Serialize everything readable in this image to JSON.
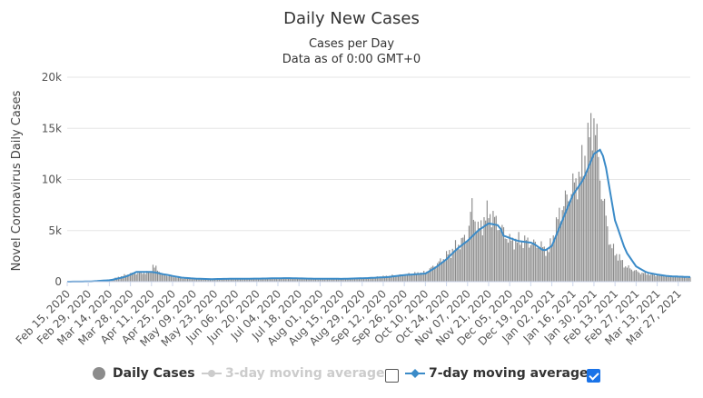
{
  "chart_data": {
    "type": "bar",
    "title": "Daily New Cases",
    "subtitle_line1": "Cases per Day",
    "subtitle_line2": "Data as of 0:00 GMT+0",
    "ylabel": "Novel Coronavirus Daily Cases",
    "ylim": [
      0,
      20000
    ],
    "yticks": [
      "0",
      "5k",
      "10k",
      "15k",
      "20k"
    ],
    "x_start": "2020-02-15",
    "x_end": "2021-04-04",
    "xtick_labels": [
      "Feb 15, 2020",
      "Feb 29, 2020",
      "Mar 14, 2020",
      "Mar 28, 2020",
      "Apr 11, 2020",
      "Apr 25, 2020",
      "May 09, 2020",
      "May 23, 2020",
      "Jun 06, 2020",
      "Jun 20, 2020",
      "Jul 04, 2020",
      "Jul 18, 2020",
      "Aug 01, 2020",
      "Aug 15, 2020",
      "Aug 29, 2020",
      "Sep 12, 2020",
      "Sep 26, 2020",
      "Oct 10, 2020",
      "Oct 24, 2020",
      "Nov 07, 2020",
      "Nov 21, 2020",
      "Dec 05, 2020",
      "Dec 19, 2020",
      "Jan 02, 2021",
      "Jan 16, 2021",
      "Jan 30, 2021",
      "Feb 13, 2021",
      "Feb 27, 2021",
      "Mar 13, 2021",
      "Mar 27, 2021"
    ],
    "series": [
      {
        "name": "Daily Cases",
        "color": "#8c8c8c",
        "visible": true,
        "anchors": [
          [
            "2020-02-15",
            0
          ],
          [
            "2020-03-01",
            20
          ],
          [
            "2020-03-15",
            200
          ],
          [
            "2020-03-28",
            800
          ],
          [
            "2020-04-10",
            900
          ],
          [
            "2020-04-12",
            1600
          ],
          [
            "2020-04-18",
            700
          ],
          [
            "2020-04-25",
            500
          ],
          [
            "2020-05-05",
            300
          ],
          [
            "2020-05-20",
            250
          ],
          [
            "2020-06-10",
            300
          ],
          [
            "2020-07-01",
            300
          ],
          [
            "2020-07-15",
            350
          ],
          [
            "2020-08-01",
            250
          ],
          [
            "2020-08-20",
            300
          ],
          [
            "2020-09-05",
            400
          ],
          [
            "2020-09-26",
            700
          ],
          [
            "2020-10-10",
            900
          ],
          [
            "2020-10-20",
            2000
          ],
          [
            "2020-10-31",
            3500
          ],
          [
            "2020-11-07",
            4500
          ],
          [
            "2020-11-10",
            7300
          ],
          [
            "2020-11-14",
            5000
          ],
          [
            "2020-11-21",
            6800
          ],
          [
            "2020-11-28",
            5500
          ],
          [
            "2020-12-05",
            4000
          ],
          [
            "2020-12-15",
            4000
          ],
          [
            "2020-12-25",
            3500
          ],
          [
            "2020-12-31",
            3000
          ],
          [
            "2021-01-08",
            7000
          ],
          [
            "2021-01-15",
            9000
          ],
          [
            "2021-01-21",
            10500
          ],
          [
            "2021-01-27",
            14000
          ],
          [
            "2021-01-30",
            16300
          ],
          [
            "2021-02-04",
            9000
          ],
          [
            "2021-02-10",
            3500
          ],
          [
            "2021-02-20",
            1500
          ],
          [
            "2021-03-01",
            900
          ],
          [
            "2021-03-15",
            600
          ],
          [
            "2021-03-27",
            500
          ],
          [
            "2021-04-04",
            450
          ]
        ]
      },
      {
        "name": "3-day moving average",
        "color": "#cccccc",
        "visible": false,
        "anchors": []
      },
      {
        "name": "7-day moving average",
        "color": "#3b8bc8",
        "visible": true,
        "anchors": [
          [
            "2020-02-15",
            0
          ],
          [
            "2020-03-01",
            20
          ],
          [
            "2020-03-15",
            150
          ],
          [
            "2020-03-25",
            500
          ],
          [
            "2020-04-01",
            950
          ],
          [
            "2020-04-12",
            950
          ],
          [
            "2020-04-20",
            700
          ],
          [
            "2020-05-01",
            400
          ],
          [
            "2020-05-10",
            300
          ],
          [
            "2020-05-20",
            250
          ],
          [
            "2020-06-01",
            280
          ],
          [
            "2020-06-20",
            300
          ],
          [
            "2020-07-10",
            350
          ],
          [
            "2020-07-25",
            300
          ],
          [
            "2020-08-15",
            280
          ],
          [
            "2020-09-01",
            350
          ],
          [
            "2020-09-15",
            450
          ],
          [
            "2020-09-26",
            650
          ],
          [
            "2020-10-10",
            800
          ],
          [
            "2020-10-17",
            1400
          ],
          [
            "2020-10-24",
            2200
          ],
          [
            "2020-10-31",
            3200
          ],
          [
            "2020-11-07",
            4000
          ],
          [
            "2020-11-14",
            5000
          ],
          [
            "2020-11-21",
            5700
          ],
          [
            "2020-11-28",
            5500
          ],
          [
            "2020-12-01",
            4500
          ],
          [
            "2020-12-10",
            4000
          ],
          [
            "2020-12-20",
            3800
          ],
          [
            "2020-12-28",
            3000
          ],
          [
            "2021-01-02",
            3500
          ],
          [
            "2021-01-09",
            6000
          ],
          [
            "2021-01-16",
            8500
          ],
          [
            "2021-01-23",
            10000
          ],
          [
            "2021-01-30",
            12500
          ],
          [
            "2021-02-03",
            12900
          ],
          [
            "2021-02-06",
            12000
          ],
          [
            "2021-02-13",
            6000
          ],
          [
            "2021-02-20",
            3000
          ],
          [
            "2021-02-27",
            1500
          ],
          [
            "2021-03-06",
            900
          ],
          [
            "2021-03-13",
            700
          ],
          [
            "2021-03-20",
            550
          ],
          [
            "2021-03-27",
            500
          ],
          [
            "2021-04-04",
            450
          ]
        ]
      }
    ],
    "legend_placement": "bottom",
    "grid": true
  },
  "legend": {
    "daily_label": "Daily Cases",
    "ma3_label": "3-day moving average",
    "ma7_label": "7-day moving average",
    "ma3_checked": false,
    "ma7_checked": true
  }
}
